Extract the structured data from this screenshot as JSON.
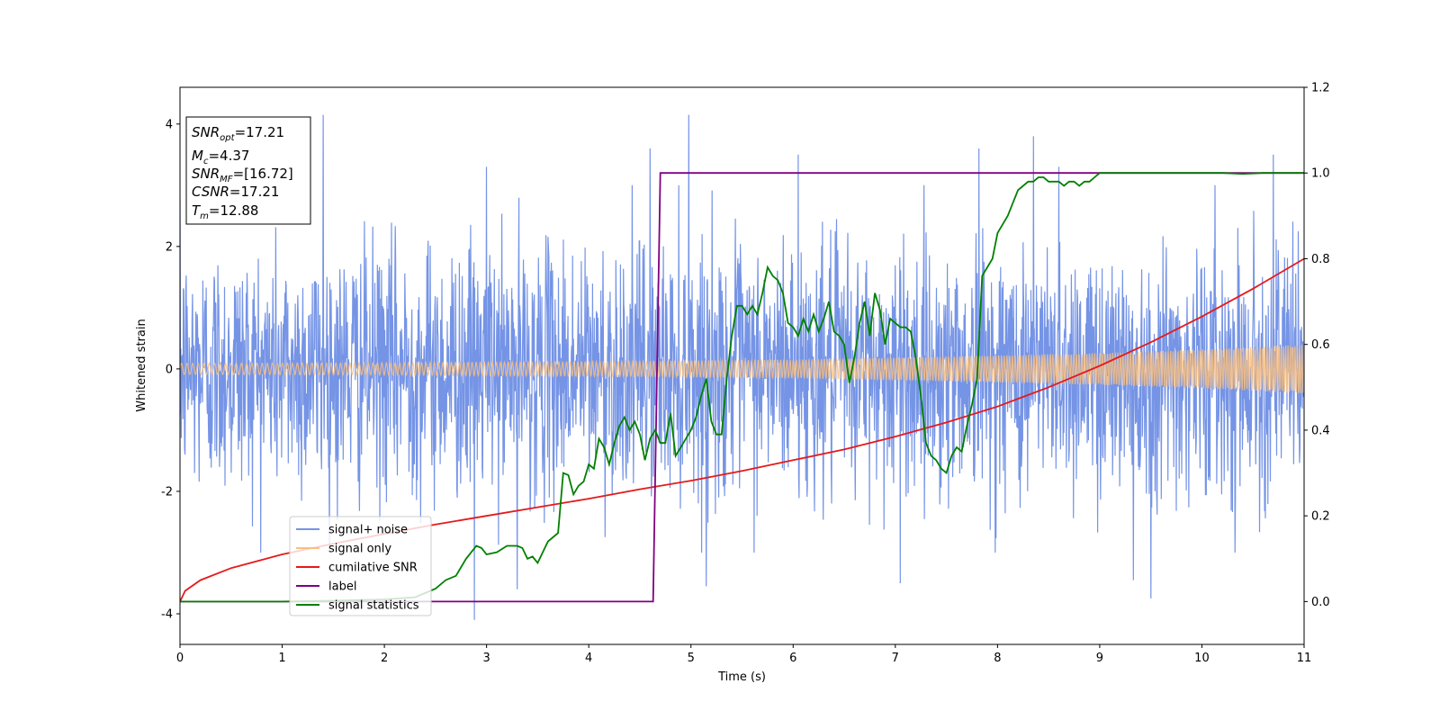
{
  "chart_data": {
    "type": "line",
    "title": "",
    "xlabel": "Time (s)",
    "ylabel": "Whitened strain",
    "y2label": "",
    "xlim": [
      0,
      11
    ],
    "ylim": [
      -4.5,
      4.6
    ],
    "y2lim": [
      -0.1,
      1.2
    ],
    "x_ticks": [
      0,
      1,
      2,
      3,
      4,
      5,
      6,
      7,
      8,
      9,
      10,
      11
    ],
    "y_ticks": [
      -4,
      -2,
      0,
      2,
      4
    ],
    "y2_ticks": [
      "0.0",
      "0.2",
      "0.4",
      "0.6",
      "0.8",
      "1.0",
      "1.2"
    ],
    "grid": false,
    "legend_position": "lower-left",
    "info_box": [
      {
        "main": "SNR",
        "sub": "opt",
        "rest": "=17.21"
      },
      {
        "main": "M",
        "sub": "c",
        "rest": "=4.37"
      },
      {
        "main": "SNR",
        "sub": "MF",
        "rest": "=[16.72]"
      },
      {
        "main": "CSNR",
        "sub": "",
        "rest": "=17.21"
      },
      {
        "main": "T",
        "sub": "m",
        "rest": "=12.88"
      }
    ],
    "series": [
      {
        "name": "signal+ noise",
        "axis": "left",
        "color": "#7594e6",
        "kind": "noise",
        "std": 1.0,
        "peak_points": [
          [
            1.4,
            4.15
          ],
          [
            4.98,
            4.15
          ],
          [
            8.35,
            3.8
          ],
          [
            2.88,
            -4.1
          ],
          [
            9.5,
            -3.75
          ],
          [
            3.3,
            -3.6
          ],
          [
            9.33,
            -3.45
          ],
          [
            5.15,
            -3.55
          ],
          [
            7.05,
            -3.5
          ],
          [
            7.82,
            3.6
          ],
          [
            6.05,
            3.5
          ],
          [
            4.6,
            3.6
          ],
          [
            10.7,
            3.5
          ],
          [
            3.0,
            3.3
          ],
          [
            8.6,
            3.3
          ]
        ]
      },
      {
        "name": "signal only",
        "axis": "left",
        "color": "#f9bf80",
        "kind": "chirp_envelope",
        "envelope": [
          [
            0,
            0.09
          ],
          [
            2,
            0.1
          ],
          [
            4,
            0.12
          ],
          [
            6,
            0.15
          ],
          [
            8,
            0.22
          ],
          [
            9,
            0.26
          ],
          [
            10,
            0.32
          ],
          [
            11,
            0.4
          ]
        ]
      },
      {
        "name": "cumilative SNR",
        "axis": "right",
        "color": "#e41a1c",
        "x": [
          0,
          0.05,
          0.2,
          0.5,
          1,
          1.5,
          2,
          2.5,
          3,
          3.5,
          4,
          4.5,
          5,
          5.5,
          6,
          6.5,
          7,
          7.5,
          8,
          8.5,
          9,
          9.5,
          10,
          10.5,
          11
        ],
        "y": [
          0.0,
          0.025,
          0.05,
          0.078,
          0.11,
          0.135,
          0.158,
          0.18,
          0.2,
          0.22,
          0.24,
          0.262,
          0.282,
          0.305,
          0.33,
          0.355,
          0.385,
          0.418,
          0.455,
          0.5,
          0.55,
          0.605,
          0.665,
          0.73,
          0.8
        ]
      },
      {
        "name": "label",
        "axis": "right",
        "color": "#800080",
        "x": [
          0,
          4.63,
          4.7,
          11
        ],
        "y": [
          0,
          0,
          1,
          1
        ]
      },
      {
        "name": "signal statistics",
        "axis": "right",
        "color": "#008000",
        "x": [
          0,
          0.5,
          1,
          1.5,
          2,
          2.3,
          2.5,
          2.6,
          2.7,
          2.8,
          2.9,
          2.95,
          3.0,
          3.1,
          3.2,
          3.3,
          3.35,
          3.4,
          3.45,
          3.5,
          3.6,
          3.65,
          3.7,
          3.75,
          3.8,
          3.85,
          3.9,
          3.95,
          4.0,
          4.05,
          4.1,
          4.15,
          4.2,
          4.25,
          4.3,
          4.35,
          4.4,
          4.45,
          4.5,
          4.55,
          4.6,
          4.65,
          4.7,
          4.75,
          4.8,
          4.85,
          4.9,
          5.0,
          5.05,
          5.1,
          5.15,
          5.2,
          5.25,
          5.3,
          5.35,
          5.4,
          5.45,
          5.5,
          5.55,
          5.6,
          5.65,
          5.7,
          5.75,
          5.8,
          5.85,
          5.9,
          5.95,
          6.0,
          6.05,
          6.1,
          6.15,
          6.2,
          6.25,
          6.3,
          6.35,
          6.4,
          6.45,
          6.5,
          6.55,
          6.6,
          6.65,
          6.7,
          6.75,
          6.8,
          6.85,
          6.9,
          6.95,
          7.0,
          7.05,
          7.1,
          7.15,
          7.2,
          7.25,
          7.3,
          7.35,
          7.4,
          7.45,
          7.5,
          7.55,
          7.6,
          7.65,
          7.7,
          7.75,
          7.8,
          7.85,
          7.9,
          7.95,
          8.0,
          8.05,
          8.1,
          8.15,
          8.2,
          8.25,
          8.3,
          8.35,
          8.4,
          8.45,
          8.5,
          8.55,
          8.6,
          8.65,
          8.7,
          8.75,
          8.8,
          8.85,
          8.9,
          8.95,
          9.0,
          9.1,
          9.2,
          9.4,
          9.6,
          9.8,
          10.0,
          10.2,
          10.4,
          10.6,
          10.8,
          11.0
        ],
        "y": [
          0.0,
          0.0,
          0.0,
          0.002,
          0.005,
          0.01,
          0.03,
          0.05,
          0.06,
          0.1,
          0.13,
          0.125,
          0.11,
          0.115,
          0.13,
          0.13,
          0.125,
          0.1,
          0.105,
          0.09,
          0.14,
          0.15,
          0.16,
          0.3,
          0.295,
          0.25,
          0.27,
          0.28,
          0.32,
          0.31,
          0.38,
          0.36,
          0.32,
          0.37,
          0.41,
          0.43,
          0.4,
          0.42,
          0.39,
          0.33,
          0.38,
          0.4,
          0.37,
          0.37,
          0.44,
          0.34,
          0.36,
          0.4,
          0.43,
          0.48,
          0.52,
          0.42,
          0.39,
          0.39,
          0.52,
          0.62,
          0.69,
          0.69,
          0.67,
          0.69,
          0.67,
          0.72,
          0.78,
          0.76,
          0.75,
          0.72,
          0.65,
          0.64,
          0.62,
          0.66,
          0.63,
          0.67,
          0.63,
          0.66,
          0.7,
          0.63,
          0.62,
          0.6,
          0.51,
          0.57,
          0.65,
          0.7,
          0.62,
          0.72,
          0.68,
          0.6,
          0.66,
          0.65,
          0.64,
          0.64,
          0.63,
          0.57,
          0.48,
          0.37,
          0.34,
          0.33,
          0.31,
          0.3,
          0.34,
          0.36,
          0.35,
          0.41,
          0.46,
          0.52,
          0.76,
          0.78,
          0.8,
          0.86,
          0.88,
          0.9,
          0.93,
          0.96,
          0.97,
          0.98,
          0.98,
          0.99,
          0.99,
          0.98,
          0.98,
          0.98,
          0.97,
          0.98,
          0.98,
          0.97,
          0.98,
          0.98,
          0.99,
          1.0,
          1.0,
          1.0,
          1.0,
          1.0,
          1.0,
          1.0,
          1.0,
          0.998,
          1.0,
          1.0,
          1.0
        ]
      }
    ]
  }
}
